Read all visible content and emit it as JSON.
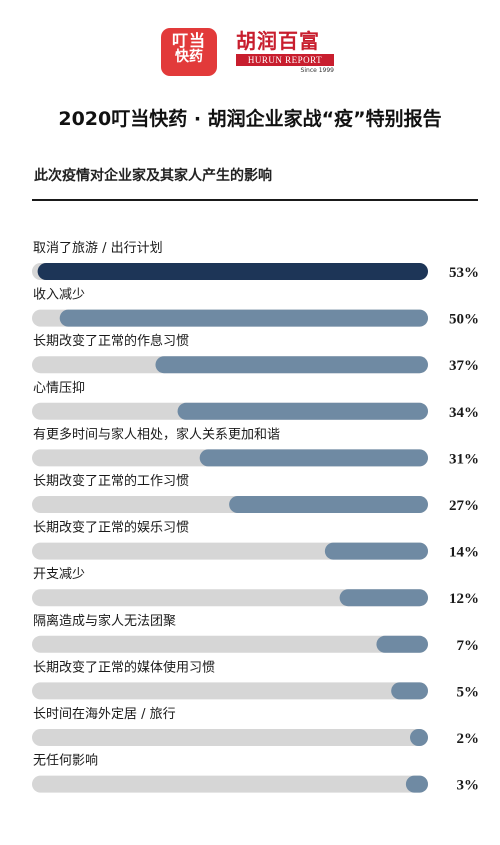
{
  "logos": {
    "dingdang": {
      "line1": "叮当",
      "line2": "快药"
    },
    "hurun": {
      "cn": "胡润百富",
      "en": "HURUN REPORT",
      "since": "Since 1999"
    }
  },
  "header": {
    "title": "2020叮当快药 · 胡润企业家战“疫”特别报告",
    "subtitle": "此次疫情对企业家及其家人产生的影响"
  },
  "colors": {
    "track": "#d6d6d6",
    "highlight": "#1d3557",
    "bar": "#6f8aa3"
  },
  "chart_data": {
    "type": "bar",
    "orientation": "horizontal",
    "title": "此次疫情对企业家及其家人产生的影响",
    "value_unit": "%",
    "xlim": [
      0,
      100
    ],
    "categories": [
      "取消了旅游 / 出行计划",
      "收入减少",
      "长期改变了正常的作息习惯",
      "心情压抑",
      "有更多时间与家人相处，家人关系更加和谐",
      "长期改变了正常的工作习惯",
      "长期改变了正常的娱乐习惯",
      "开支减少",
      "隔离造成与家人无法团聚",
      "长期改变了正常的媒体使用习惯",
      "长时间在海外定居 / 旅行",
      "无任何影响"
    ],
    "values": [
      53,
      50,
      37,
      34,
      31,
      27,
      14,
      12,
      7,
      5,
      2,
      3
    ],
    "value_labels": [
      "53%",
      "50%",
      "37%",
      "34%",
      "31%",
      "27%",
      "14%",
      "12%",
      "7%",
      "5%",
      "2%",
      "3%"
    ],
    "highlight_index": 0
  }
}
